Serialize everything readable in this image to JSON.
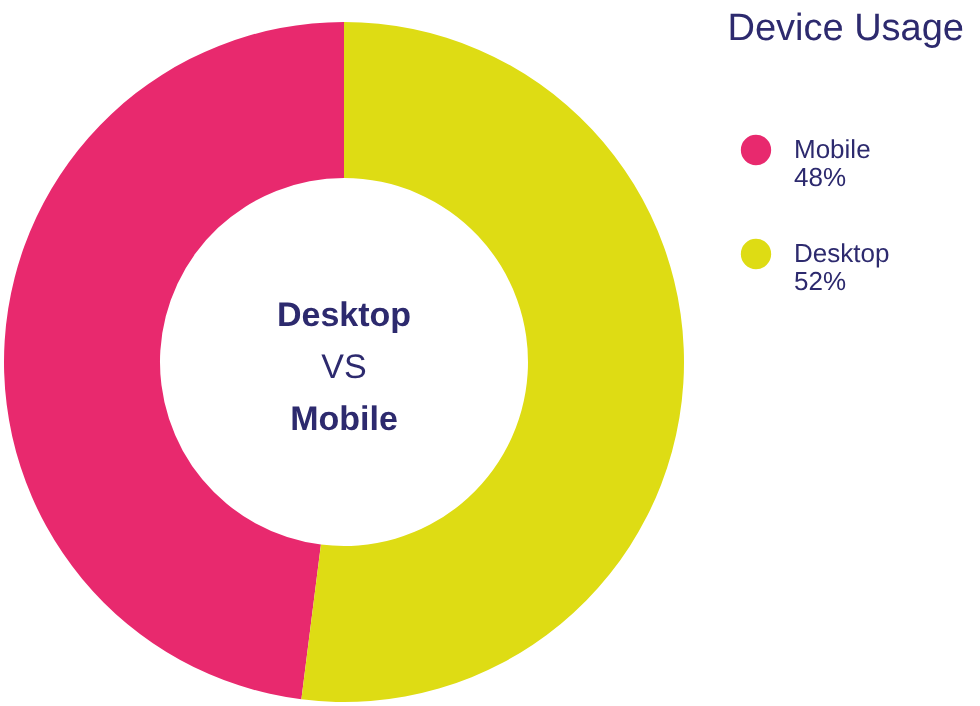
{
  "chart_data": {
    "type": "donut",
    "title": "Device Usage",
    "categories": [
      "Mobile",
      "Desktop"
    ],
    "values": [
      48,
      52
    ],
    "colors": [
      "#e8296e",
      "#dedc14"
    ],
    "value_labels": [
      "48%",
      "52%"
    ],
    "legend": "right",
    "annotations": [
      "Desktop",
      "VS",
      "Mobile"
    ]
  }
}
